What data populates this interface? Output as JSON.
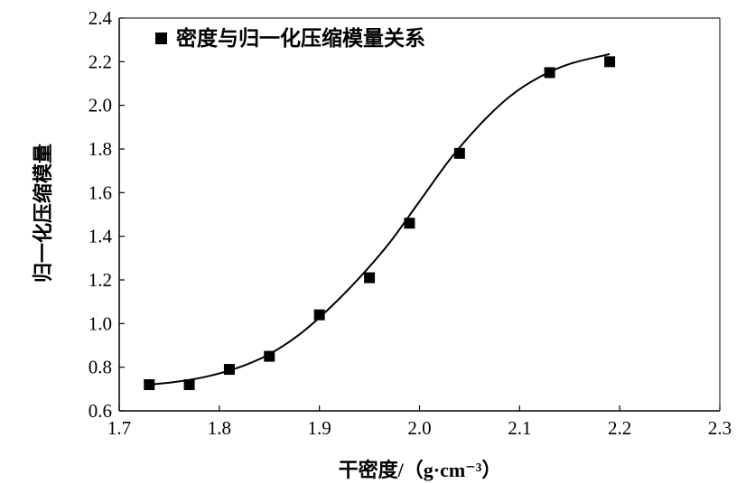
{
  "chart_data": {
    "type": "scatter",
    "xlabel": "干密度/（g·cm⁻³）",
    "ylabel": "归一化压缩模量",
    "xlim": [
      1.7,
      2.3
    ],
    "ylim": [
      0.6,
      2.4
    ],
    "xticks": [
      1.7,
      1.8,
      1.9,
      2.0,
      2.1,
      2.2,
      2.3
    ],
    "yticks": [
      0.6,
      0.8,
      1.0,
      1.2,
      1.4,
      1.6,
      1.8,
      2.0,
      2.2,
      2.4
    ],
    "xtick_labels": [
      "1.7",
      "1.8",
      "1.9",
      "2.0",
      "2.1",
      "2.2",
      "2.3"
    ],
    "ytick_labels": [
      "0.6",
      "0.8",
      "1.0",
      "1.2",
      "1.4",
      "1.6",
      "1.8",
      "2.0",
      "2.2",
      "2.4"
    ],
    "legend_position": "top-left",
    "grid": false,
    "series": [
      {
        "name": "密度与归一化压缩模量关系",
        "marker": "square",
        "color": "#000000",
        "x": [
          1.73,
          1.77,
          1.81,
          1.85,
          1.9,
          1.95,
          1.99,
          2.04,
          2.13,
          2.19
        ],
        "y": [
          0.72,
          0.72,
          0.79,
          0.85,
          1.04,
          1.21,
          1.46,
          1.78,
          2.15,
          2.2
        ]
      }
    ],
    "fit_curve": {
      "color": "#000000",
      "x": [
        1.73,
        1.76,
        1.79,
        1.82,
        1.85,
        1.88,
        1.91,
        1.94,
        1.97,
        2.0,
        2.03,
        2.06,
        2.09,
        2.12,
        2.15,
        2.19
      ],
      "y": [
        0.72,
        0.735,
        0.76,
        0.8,
        0.86,
        0.95,
        1.07,
        1.21,
        1.37,
        1.56,
        1.75,
        1.91,
        2.04,
        2.13,
        2.19,
        2.235
      ]
    }
  }
}
